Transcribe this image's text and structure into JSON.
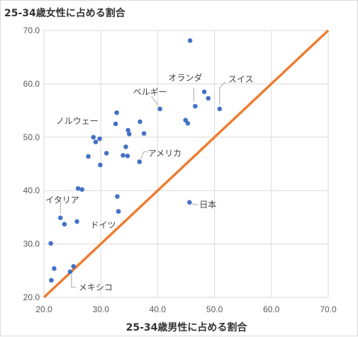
{
  "chart_data": {
    "type": "scatter",
    "ylabel": "25-34歳女性に占める割合",
    "xlabel": "25-34歳男性に占める割合",
    "xlim": [
      20.0,
      70.0
    ],
    "ylim": [
      20.0,
      70.0
    ],
    "xticks": [
      "20.0",
      "30.0",
      "40.0",
      "50.0",
      "60.0",
      "70.0"
    ],
    "yticks": [
      "20.0",
      "30.0",
      "40.0",
      "50.0",
      "60.0",
      "70.0"
    ],
    "grid": true,
    "point_color": "#4472c4",
    "line_color": "#ed7d31",
    "reference_line": {
      "x": [
        20.0,
        70.0
      ],
      "y": [
        20.0,
        70.0
      ]
    },
    "points": [
      {
        "x": 45.7,
        "y": 68.1
      },
      {
        "x": 48.2,
        "y": 58.5
      },
      {
        "x": 48.9,
        "y": 57.3
      },
      {
        "x": 46.6,
        "y": 55.8
      },
      {
        "x": 50.9,
        "y": 55.3
      },
      {
        "x": 40.4,
        "y": 55.3
      },
      {
        "x": 32.8,
        "y": 54.6
      },
      {
        "x": 44.9,
        "y": 53.2
      },
      {
        "x": 45.3,
        "y": 52.6
      },
      {
        "x": 36.9,
        "y": 52.9
      },
      {
        "x": 32.6,
        "y": 52.5
      },
      {
        "x": 34.8,
        "y": 51.3
      },
      {
        "x": 35.0,
        "y": 50.6
      },
      {
        "x": 37.6,
        "y": 50.7
      },
      {
        "x": 28.7,
        "y": 50.0
      },
      {
        "x": 29.8,
        "y": 49.7
      },
      {
        "x": 29.1,
        "y": 49.1
      },
      {
        "x": 34.4,
        "y": 48.2
      },
      {
        "x": 31.0,
        "y": 47.0
      },
      {
        "x": 33.9,
        "y": 46.6
      },
      {
        "x": 34.7,
        "y": 46.5
      },
      {
        "x": 27.8,
        "y": 46.4
      },
      {
        "x": 36.8,
        "y": 45.4
      },
      {
        "x": 29.9,
        "y": 44.8
      },
      {
        "x": 26.0,
        "y": 40.4
      },
      {
        "x": 26.7,
        "y": 40.2
      },
      {
        "x": 32.9,
        "y": 38.9
      },
      {
        "x": 45.6,
        "y": 37.8
      },
      {
        "x": 33.1,
        "y": 36.1
      },
      {
        "x": 22.9,
        "y": 34.9
      },
      {
        "x": 23.6,
        "y": 33.7
      },
      {
        "x": 25.8,
        "y": 34.2
      },
      {
        "x": 21.2,
        "y": 30.1
      },
      {
        "x": 21.8,
        "y": 25.4
      },
      {
        "x": 25.2,
        "y": 25.8
      },
      {
        "x": 24.6,
        "y": 24.8
      },
      {
        "x": 21.3,
        "y": 23.2
      }
    ],
    "annotations": [
      {
        "text": "オランダ",
        "x": 46.6,
        "y": 55.8
      },
      {
        "text": "スイス",
        "x": 50.9,
        "y": 55.3
      },
      {
        "text": "ベルギー",
        "x": 40.4,
        "y": 55.3
      },
      {
        "text": "ノルウェー",
        "x": 28.7,
        "y": 50.0
      },
      {
        "text": "アメリカ",
        "x": 36.8,
        "y": 45.4
      },
      {
        "text": "イタリア",
        "x": 22.9,
        "y": 34.9
      },
      {
        "text": "ドイツ",
        "x": 25.8,
        "y": 34.2
      },
      {
        "text": "日本",
        "x": 45.6,
        "y": 37.8
      },
      {
        "text": "メキシコ",
        "x": 24.6,
        "y": 24.8
      }
    ]
  }
}
